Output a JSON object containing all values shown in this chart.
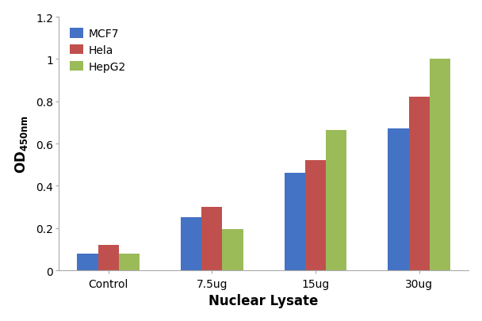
{
  "categories": [
    "Control",
    "7.5ug",
    "15ug",
    "30ug"
  ],
  "series": [
    {
      "name": "MCF7",
      "color": "#4472C4",
      "values": [
        0.08,
        0.25,
        0.46,
        0.67
      ]
    },
    {
      "name": "Hela",
      "color": "#C0504D",
      "values": [
        0.12,
        0.3,
        0.52,
        0.82
      ]
    },
    {
      "name": "HepG2",
      "color": "#9BBB59",
      "values": [
        0.08,
        0.195,
        0.665,
        1.0
      ]
    }
  ],
  "xlabel": "Nuclear Lysate",
  "ylabel": "OD$_{450nm}$",
  "ylim": [
    0,
    1.2
  ],
  "yticks": [
    0,
    0.2,
    0.4,
    0.6,
    0.8,
    1.0,
    1.2
  ],
  "background_color": "#FFFFFF",
  "plot_bg_color": "#FFFFFF",
  "legend_position": "upper left",
  "bar_width": 0.2,
  "axis_fontsize": 12,
  "tick_fontsize": 10,
  "legend_fontsize": 10,
  "spine_color": "#AAAAAA"
}
